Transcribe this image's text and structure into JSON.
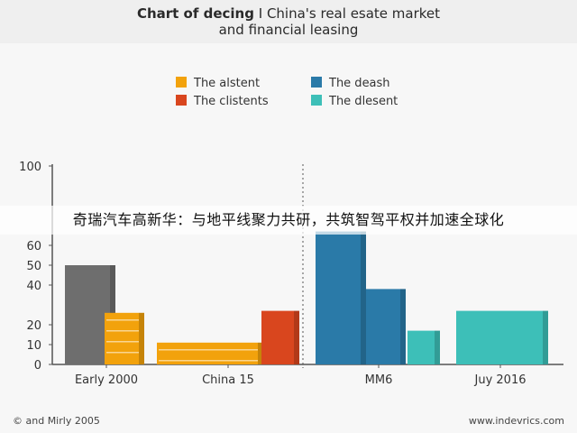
{
  "title": {
    "line1_bold": "Chart of decing",
    "line1_rest": "I China's real esate market",
    "line2": "and financial leasing"
  },
  "legend": [
    {
      "label": "The alstent",
      "color": "#f2a20c"
    },
    {
      "label": "The deash",
      "color": "#2a7aa8"
    },
    {
      "label": "The clistents",
      "color": "#d9461e"
    },
    {
      "label": "The dlesent",
      "color": "#3dbfb8"
    }
  ],
  "banner_text": "奇瑞汽车高新华：与地平线聚力共研，共筑智驾平权并加速全球化",
  "footer": {
    "left": "© and Mirly 2005",
    "right": "www.indevrics.com"
  },
  "chart_data": {
    "type": "bar",
    "categories": [
      "Early 2000",
      "China 15",
      "MM6",
      "Juy 2016"
    ],
    "y_ticks": [
      0,
      10,
      20,
      40,
      50,
      60,
      100
    ],
    "ylim": [
      0,
      100
    ],
    "series": [
      {
        "name": "The alstent",
        "color": "#f2a20c",
        "values": [
          26,
          11,
          null,
          null
        ]
      },
      {
        "name": "The deash",
        "color": "#2a7aa8",
        "values": [
          null,
          null,
          67,
          38
        ]
      },
      {
        "name": "The clistents",
        "color": "#d9461e",
        "values": [
          null,
          27,
          null,
          null
        ]
      },
      {
        "name": "The dlesent",
        "color": "#3dbfb8",
        "values": [
          null,
          null,
          17,
          27
        ]
      }
    ],
    "extra_bars": [
      {
        "category": "Early 2000",
        "color": "#6e6e6e",
        "value": 50
      }
    ]
  }
}
